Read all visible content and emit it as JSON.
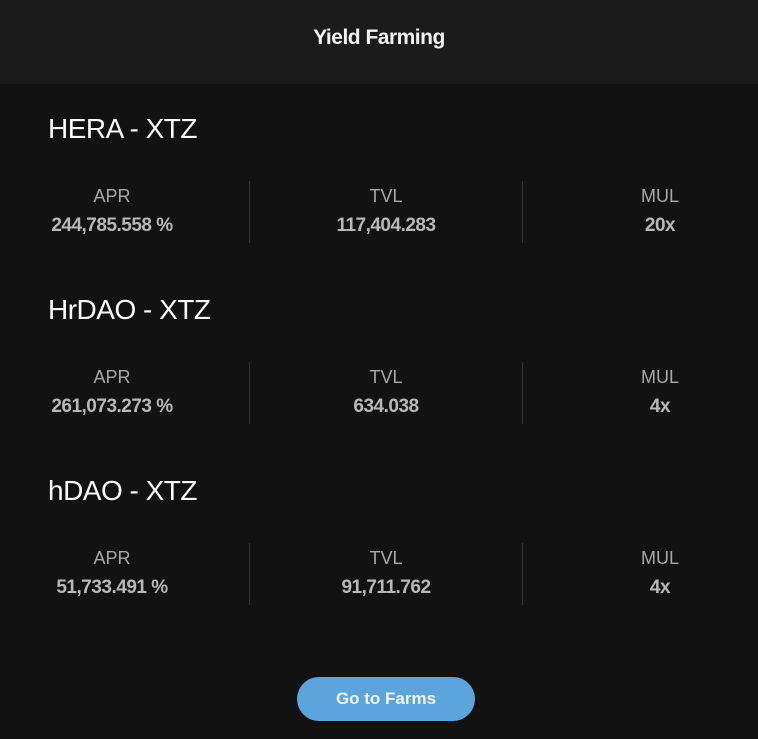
{
  "header": {
    "title": "Yield Farming"
  },
  "labels": {
    "apr": "APR",
    "tvl": "TVL",
    "mul": "MUL"
  },
  "farms": [
    {
      "name": "HERA - XTZ",
      "apr": "244,785.558 %",
      "tvl": "117,404.283",
      "mul": "20x"
    },
    {
      "name": "HrDAO - XTZ",
      "apr": "261,073.273 %",
      "tvl": "634.038",
      "mul": "4x"
    },
    {
      "name": "hDAO - XTZ",
      "apr": "51,733.491 %",
      "tvl": "91,711.762",
      "mul": "4x"
    }
  ],
  "button": {
    "label": "Go to Farms",
    "color": "#5ca5dc"
  }
}
